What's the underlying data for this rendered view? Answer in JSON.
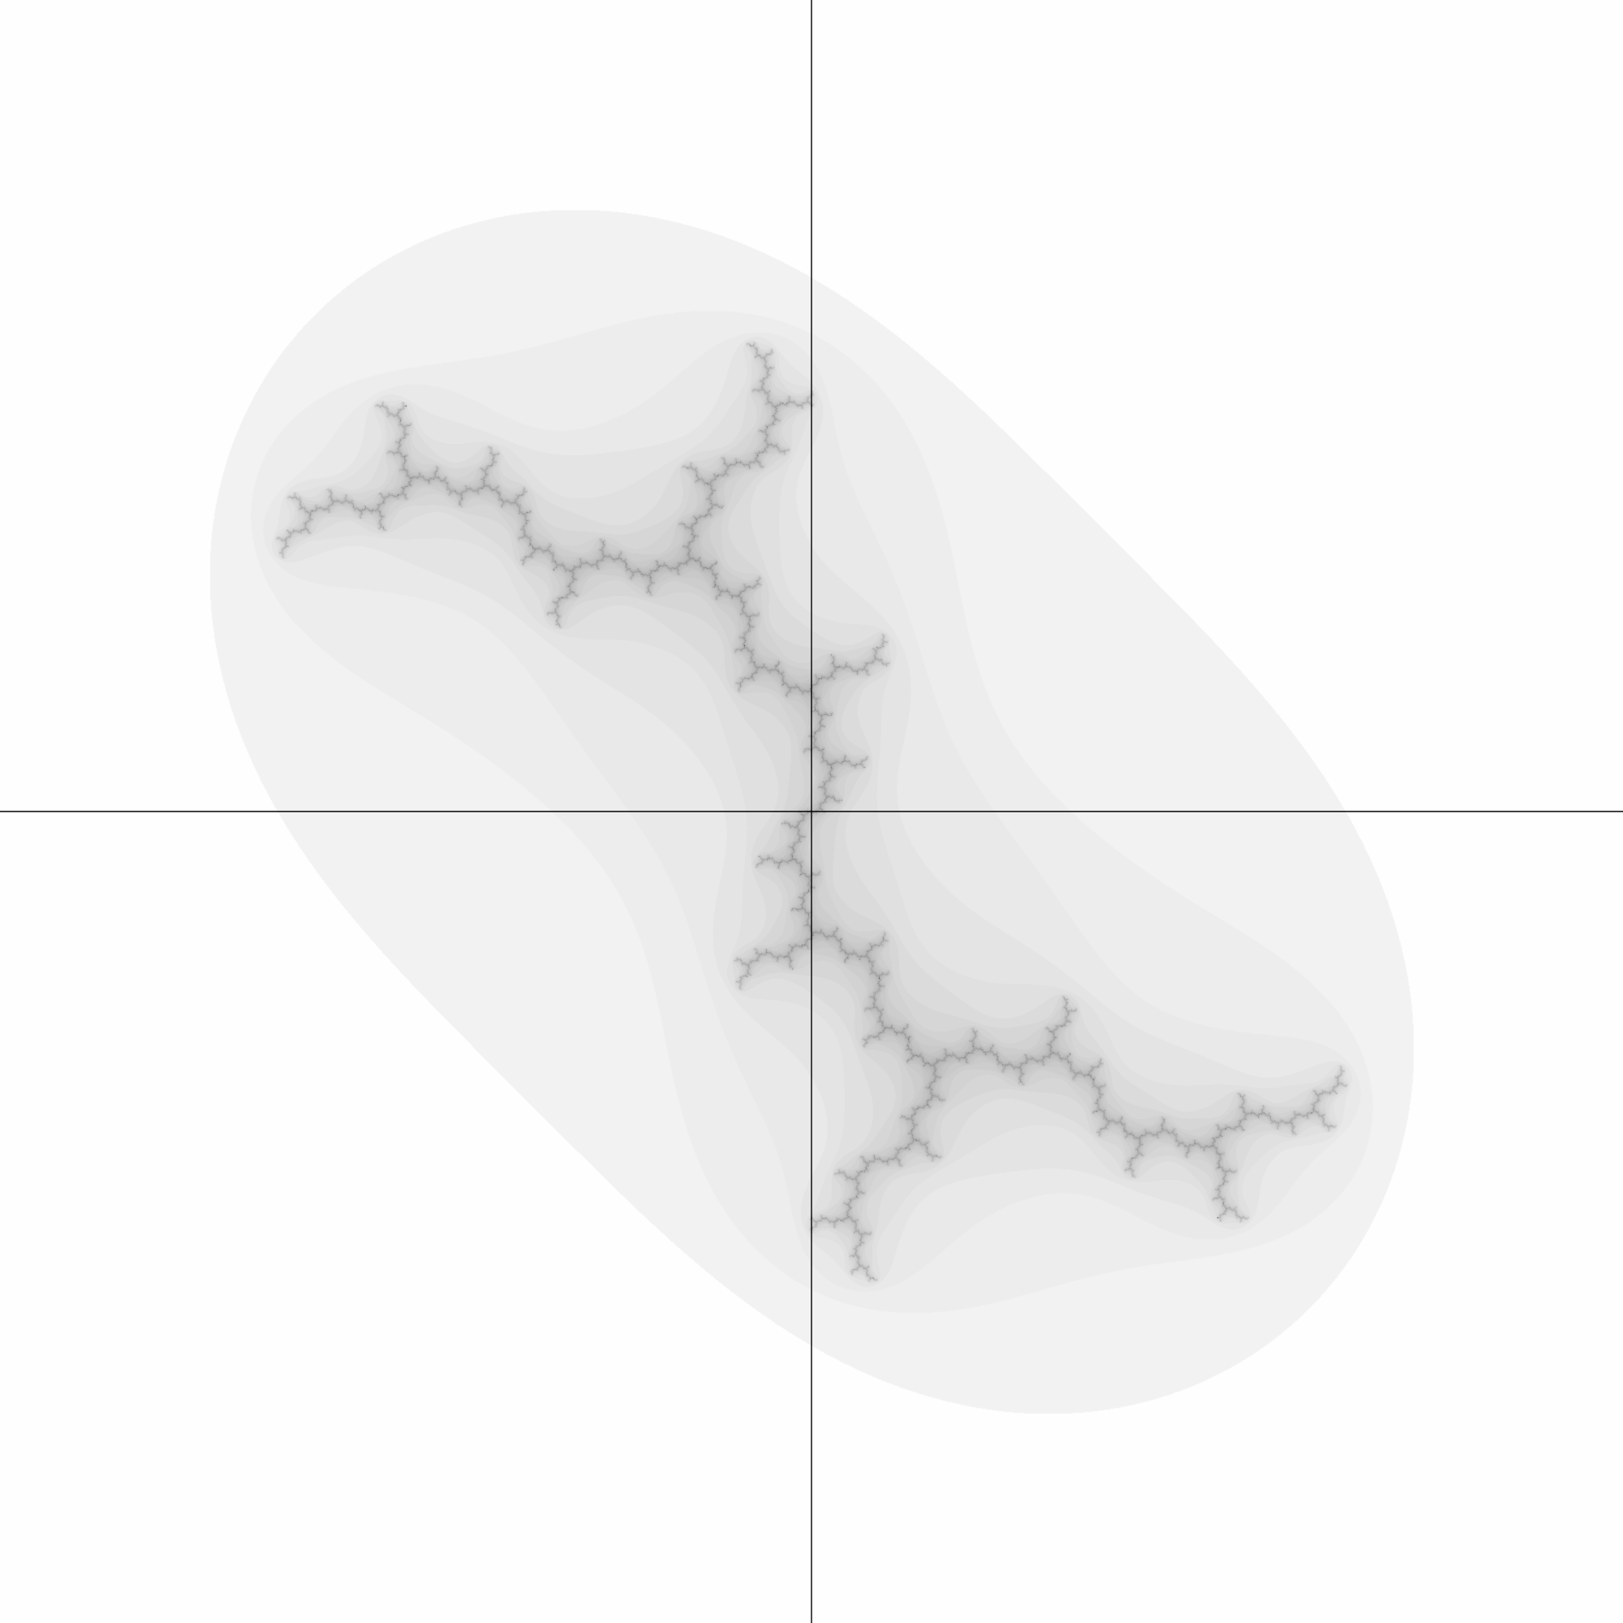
{
  "image": {
    "subject": "julia-set-escape-time-render",
    "palette": {
      "background": "#fefefe",
      "band_light": "#f2f2f2",
      "band_dark": "#c4c4c4",
      "set_color": "#2a2a2a",
      "axis_color": "#000000"
    }
  },
  "fractal": {
    "kind": "julia",
    "c_re": 0,
    "c_im": 1,
    "view": {
      "re_min": -2,
      "re_max": 2,
      "im_min": -2,
      "im_max": 2
    },
    "max_iterations": 160,
    "shading": "banded-grayscale"
  },
  "axes": {
    "show_horizontal": true,
    "show_vertical": true
  }
}
